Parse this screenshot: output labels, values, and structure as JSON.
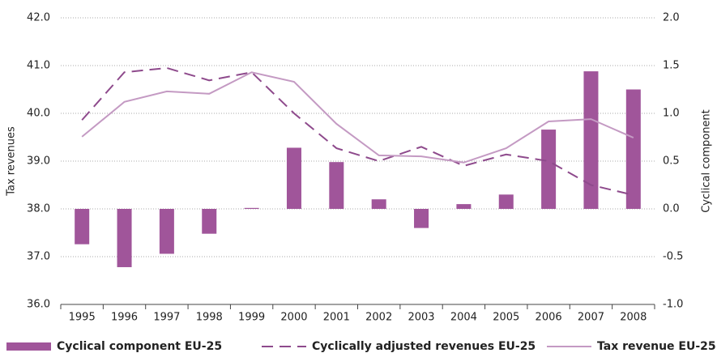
{
  "chart_data": {
    "type": "bar-line",
    "y_label": "Tax revenues",
    "y2_label": "Cyclical component",
    "categories": [
      "1995",
      "1996",
      "1997",
      "1998",
      "1999",
      "2000",
      "2001",
      "2002",
      "2003",
      "2004",
      "2005",
      "2006",
      "2007",
      "2008"
    ],
    "series": [
      {
        "name": "Cyclical component EU-25",
        "type": "bar",
        "axis": "y2",
        "color": "#a0559a",
        "values": [
          -0.37,
          -0.61,
          -0.47,
          -0.26,
          0.01,
          0.64,
          0.49,
          0.1,
          -0.2,
          0.05,
          0.15,
          0.83,
          1.44,
          1.25
        ]
      },
      {
        "name": "Cyclically adjusted revenues EU-25",
        "type": "line",
        "dashed": true,
        "axis": "y",
        "color": "#8e4a8c",
        "values": [
          39.86,
          40.86,
          40.95,
          40.69,
          40.86,
          40.0,
          39.27,
          39.0,
          39.3,
          38.9,
          39.14,
          39.0,
          38.5,
          38.29
        ]
      },
      {
        "name": "Tax revenue EU-25",
        "type": "line",
        "dashed": false,
        "axis": "y",
        "color": "#c49ac3",
        "values": [
          39.51,
          40.24,
          40.46,
          40.41,
          40.86,
          40.66,
          39.78,
          39.12,
          39.1,
          38.97,
          39.27,
          39.83,
          39.88,
          39.49
        ]
      }
    ],
    "ylim": [
      36,
      42
    ],
    "yticks": [
      {
        "value": 36,
        "label": "36.0"
      },
      {
        "value": 37,
        "label": "37.0"
      },
      {
        "value": 38,
        "label": "38.0"
      },
      {
        "value": 39,
        "label": "39.0"
      },
      {
        "value": 40,
        "label": "40.0"
      },
      {
        "value": 41,
        "label": "41.0"
      },
      {
        "value": 42,
        "label": "42.0"
      }
    ],
    "y2lim": [
      -1,
      2
    ],
    "y2ticks": [
      {
        "value": -1,
        "label": "-1.0"
      },
      -0.5,
      {
        "value": 0,
        "label": "0.0"
      },
      0.5,
      {
        "value": 1,
        "label": "1.0"
      },
      1.5,
      {
        "value": 2,
        "label": "2.0"
      }
    ],
    "grid": true,
    "legend": "bottom"
  }
}
